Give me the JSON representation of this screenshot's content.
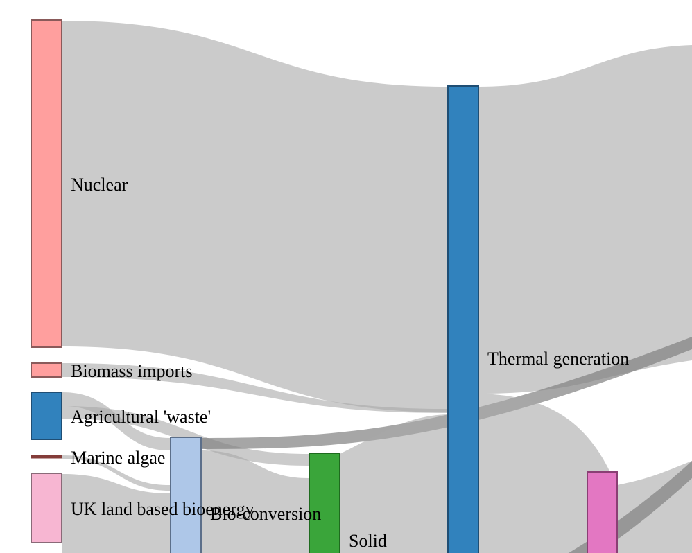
{
  "nodes": [
    {
      "id": "nuclear",
      "label": "Nuclear",
      "color": "#ff9f9e"
    },
    {
      "id": "biomass-imports",
      "label": "Biomass imports",
      "color": "#ff9f9e"
    },
    {
      "id": "agricultural-waste",
      "label": "Agricultural 'waste'",
      "color": "#3182bd"
    },
    {
      "id": "marine-algae",
      "label": "Marine algae",
      "color": "#843c39"
    },
    {
      "id": "uk-land-bioenergy",
      "label": "UK land based bioenergy",
      "color": "#f7b6d2"
    },
    {
      "id": "bio-conversion",
      "label": "Bio-conversion",
      "color": "#aec7e8"
    },
    {
      "id": "solid",
      "label": "Solid",
      "color": "#2ca02c"
    },
    {
      "id": "thermal-generation",
      "label": "Thermal generation",
      "color": "#3182bd"
    },
    {
      "id": "unlabeled-pink-node",
      "label": "",
      "color": "#e377c2"
    }
  ],
  "colors": {
    "link": "#a9a9a9",
    "link_dark": "#808080",
    "node_stroke_dark": "#555555"
  }
}
